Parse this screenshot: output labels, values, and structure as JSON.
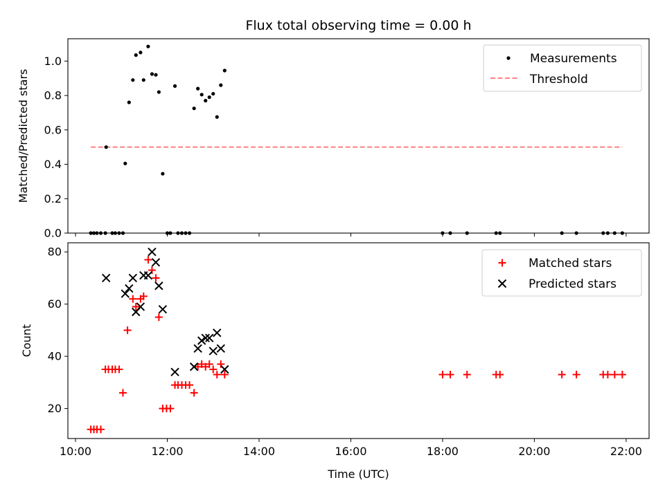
{
  "chart_data": [
    {
      "type": "scatter",
      "title": "Flux total observing time = 0.00 h",
      "xlabel": "",
      "ylabel": "Matched/Predicted stars",
      "ylim": [
        0,
        1.13
      ],
      "xlim": [
        "09:50",
        "22:30"
      ],
      "yticks": [
        "0.0",
        "0.2",
        "0.4",
        "0.6",
        "0.8",
        "1.0"
      ],
      "legend_position": "top-right",
      "series": [
        {
          "name": "Measurements",
          "marker": "dot",
          "color": "#000000",
          "points": [
            [
              "10:20",
              0.0
            ],
            [
              "10:24",
              0.0
            ],
            [
              "10:28",
              0.0
            ],
            [
              "10:33",
              0.0
            ],
            [
              "10:39",
              0.0
            ],
            [
              "10:40",
              0.5
            ],
            [
              "10:48",
              0.0
            ],
            [
              "10:52",
              0.0
            ],
            [
              "10:57",
              0.0
            ],
            [
              "11:02",
              0.0
            ],
            [
              "11:05",
              0.405
            ],
            [
              "11:10",
              0.76
            ],
            [
              "11:15",
              0.89
            ],
            [
              "11:19",
              1.035
            ],
            [
              "11:25",
              1.05
            ],
            [
              "11:29",
              0.89
            ],
            [
              "11:35",
              1.085
            ],
            [
              "11:40",
              0.925
            ],
            [
              "11:45",
              0.92
            ],
            [
              "11:49",
              0.82
            ],
            [
              "11:54",
              0.345
            ],
            [
              "12:00",
              0.0
            ],
            [
              "12:04",
              0.0
            ],
            [
              "12:10",
              0.855
            ],
            [
              "12:14",
              0.0
            ],
            [
              "12:19",
              0.0
            ],
            [
              "12:24",
              0.0
            ],
            [
              "12:29",
              0.0
            ],
            [
              "12:35",
              0.725
            ],
            [
              "12:40",
              0.84
            ],
            [
              "12:45",
              0.805
            ],
            [
              "12:50",
              0.77
            ],
            [
              "12:55",
              0.79
            ],
            [
              "13:00",
              0.81
            ],
            [
              "13:05",
              0.675
            ],
            [
              "13:10",
              0.86
            ],
            [
              "13:15",
              0.945
            ],
            [
              "18:00",
              0.0
            ],
            [
              "18:10",
              0.0
            ],
            [
              "18:32",
              0.0
            ],
            [
              "19:10",
              0.0
            ],
            [
              "19:15",
              0.0
            ],
            [
              "20:36",
              0.0
            ],
            [
              "20:55",
              0.0
            ],
            [
              "21:30",
              0.0
            ],
            [
              "21:36",
              0.0
            ],
            [
              "21:45",
              0.0
            ],
            [
              "21:55",
              0.0
            ]
          ]
        },
        {
          "name": "Threshold",
          "marker": "dashed-line",
          "color": "#ff7f7f",
          "x": [
            "10:20",
            "21:55"
          ],
          "y": [
            0.5,
            0.5
          ]
        }
      ]
    },
    {
      "type": "scatter",
      "title": "",
      "xlabel": "Time (UTC)",
      "ylabel": "Count",
      "ylim": [
        8.5,
        83.5
      ],
      "xlim": [
        "09:50",
        "22:30"
      ],
      "xticks": [
        "10:00",
        "12:00",
        "14:00",
        "16:00",
        "18:00",
        "20:00",
        "22:00"
      ],
      "yticks": [
        "20",
        "40",
        "60",
        "80"
      ],
      "legend_position": "top-right",
      "series": [
        {
          "name": "Matched stars",
          "marker": "plus",
          "color": "#ff0000",
          "points": [
            [
              "10:20",
              12
            ],
            [
              "10:24",
              12
            ],
            [
              "10:28",
              12
            ],
            [
              "10:33",
              12
            ],
            [
              "10:39",
              35
            ],
            [
              "10:43",
              35
            ],
            [
              "10:48",
              35
            ],
            [
              "10:52",
              35
            ],
            [
              "10:57",
              35
            ],
            [
              "11:02",
              26
            ],
            [
              "11:08",
              50
            ],
            [
              "11:15",
              62
            ],
            [
              "11:19",
              59
            ],
            [
              "11:25",
              62
            ],
            [
              "11:29",
              63
            ],
            [
              "11:35",
              77
            ],
            [
              "11:40",
              73
            ],
            [
              "11:45",
              70
            ],
            [
              "11:49",
              55
            ],
            [
              "11:54",
              20
            ],
            [
              "11:59",
              20
            ],
            [
              "12:04",
              20
            ],
            [
              "12:10",
              29
            ],
            [
              "12:14",
              29
            ],
            [
              "12:19",
              29
            ],
            [
              "12:24",
              29
            ],
            [
              "12:29",
              29
            ],
            [
              "12:35",
              26
            ],
            [
              "12:40",
              36
            ],
            [
              "12:45",
              37
            ],
            [
              "12:50",
              36
            ],
            [
              "12:55",
              37
            ],
            [
              "13:00",
              35
            ],
            [
              "13:05",
              33
            ],
            [
              "13:10",
              37
            ],
            [
              "13:15",
              33
            ],
            [
              "18:00",
              33
            ],
            [
              "18:10",
              33
            ],
            [
              "18:32",
              33
            ],
            [
              "19:10",
              33
            ],
            [
              "19:15",
              33
            ],
            [
              "20:36",
              33
            ],
            [
              "20:55",
              33
            ],
            [
              "21:30",
              33
            ],
            [
              "21:36",
              33
            ],
            [
              "21:45",
              33
            ],
            [
              "21:55",
              33
            ]
          ]
        },
        {
          "name": "Predicted stars",
          "marker": "x",
          "color": "#000000",
          "points": [
            [
              "10:40",
              70
            ],
            [
              "11:05",
              64
            ],
            [
              "11:10",
              66
            ],
            [
              "11:15",
              70
            ],
            [
              "11:19",
              57
            ],
            [
              "11:25",
              59
            ],
            [
              "11:29",
              71
            ],
            [
              "11:35",
              71
            ],
            [
              "11:40",
              80
            ],
            [
              "11:45",
              76
            ],
            [
              "11:49",
              67
            ],
            [
              "11:54",
              58
            ],
            [
              "12:10",
              34
            ],
            [
              "12:35",
              36
            ],
            [
              "12:40",
              43
            ],
            [
              "12:45",
              46
            ],
            [
              "12:50",
              47
            ],
            [
              "12:55",
              47
            ],
            [
              "13:00",
              42
            ],
            [
              "13:05",
              49
            ],
            [
              "13:10",
              43
            ],
            [
              "13:15",
              35
            ]
          ]
        }
      ]
    }
  ]
}
